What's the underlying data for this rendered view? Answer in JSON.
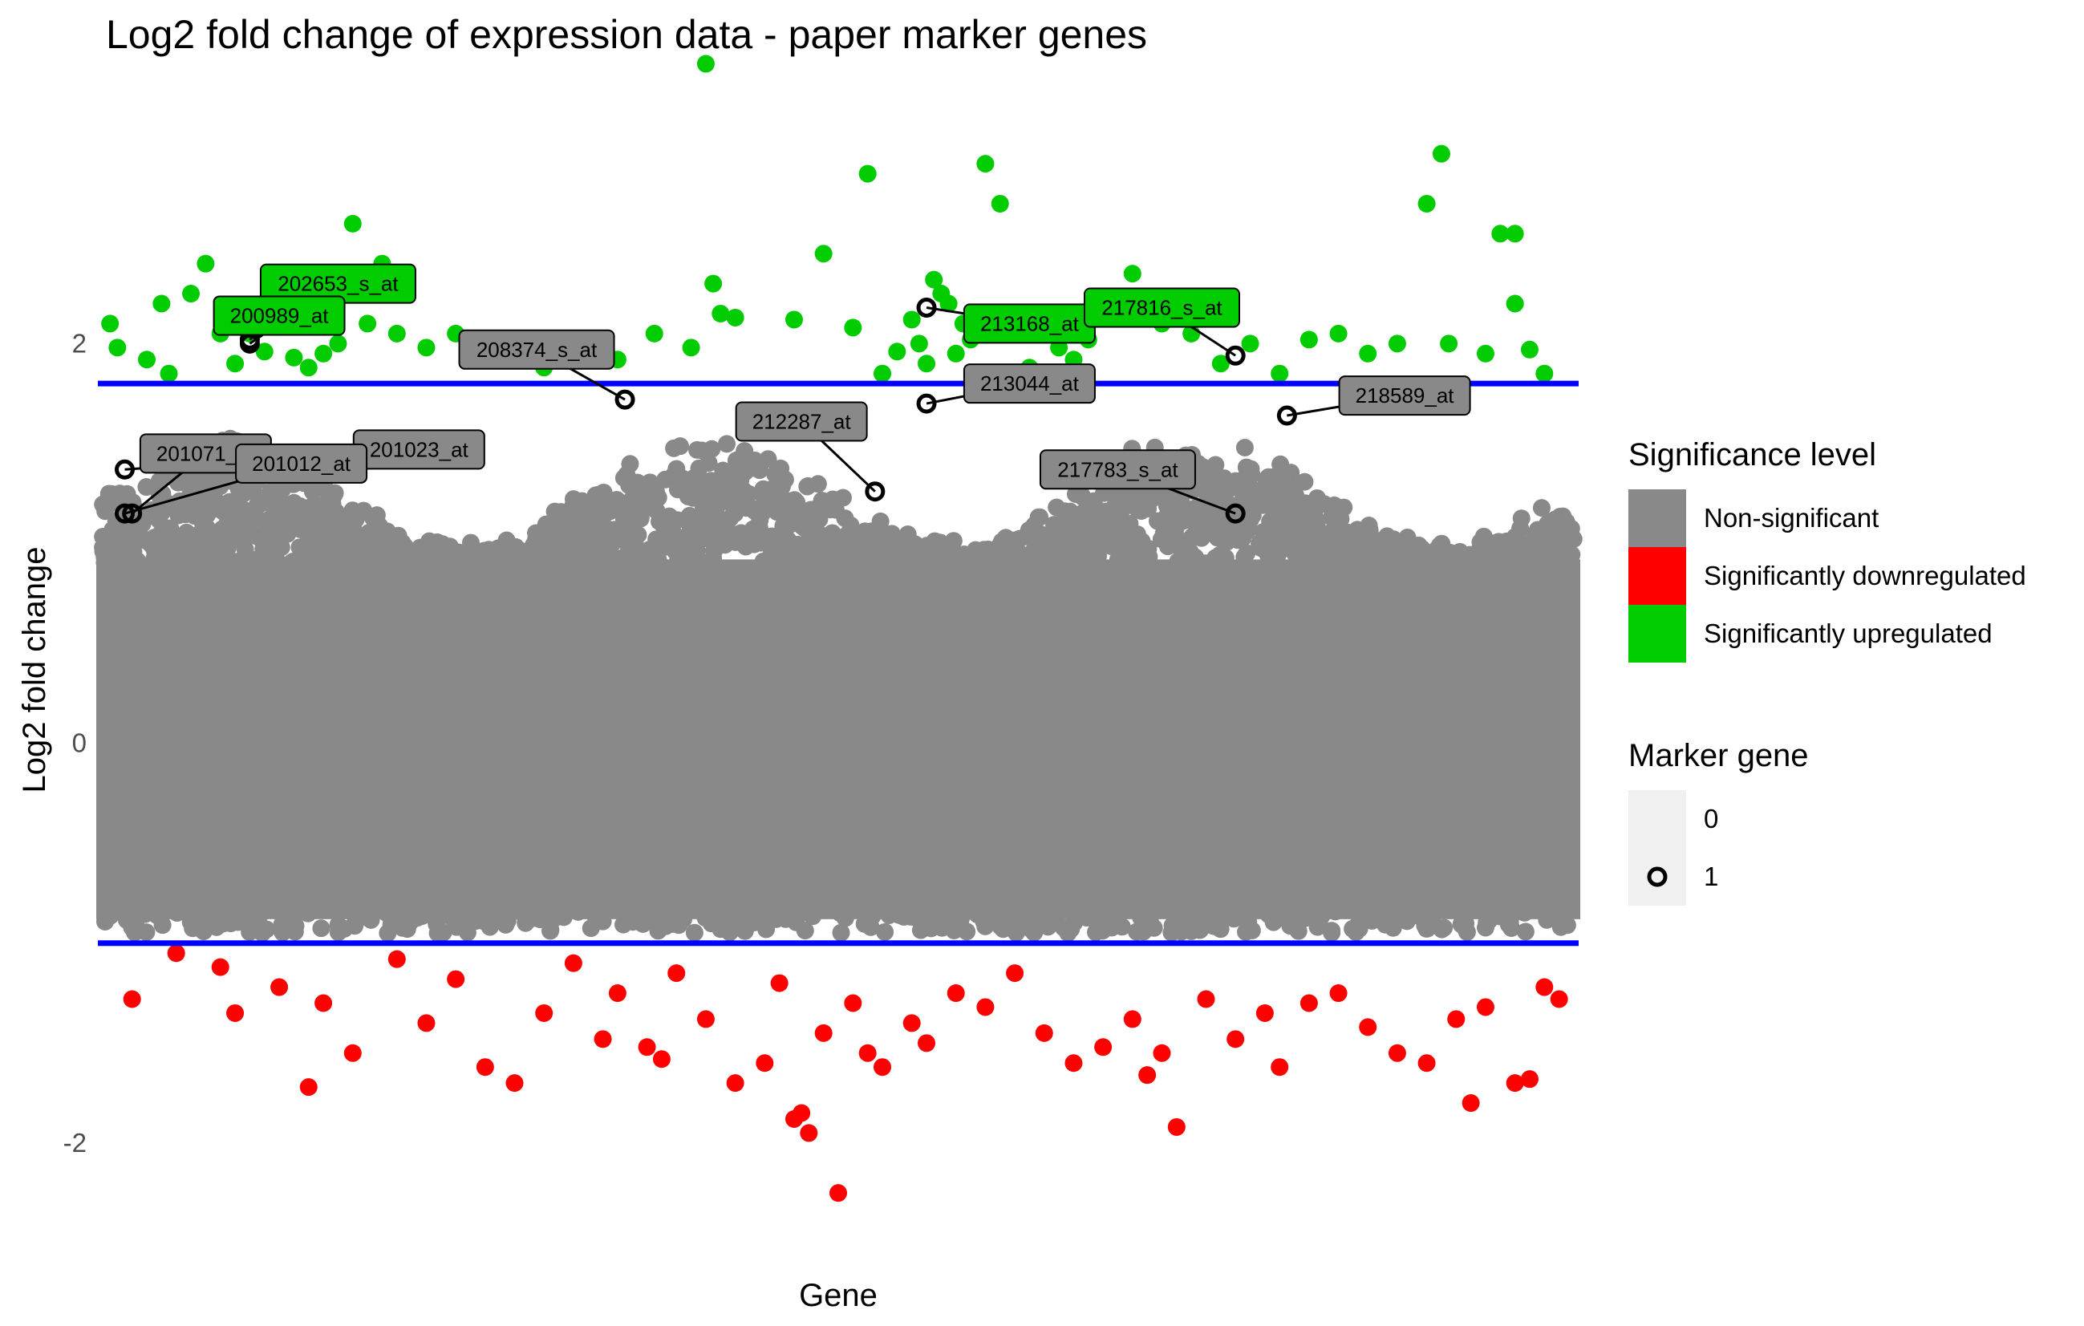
{
  "chart_data": {
    "type": "scatter",
    "title": "Log2 fold change of expression data - paper marker genes",
    "xlabel": "Gene",
    "ylabel": "Log2 fold change",
    "ylim": [
      -2.45,
      3.35
    ],
    "y_ticks": [
      -2,
      0,
      2
    ],
    "y_tick_labels": [
      "-2",
      "0",
      "2"
    ],
    "grid": false,
    "thresholds": {
      "upper": 1.8,
      "lower": -1.0,
      "color": "#0000ff"
    },
    "legend_position": "right",
    "series": [
      {
        "name": "Non-significant",
        "color": "#898989",
        "description_range": [
          -0.95,
          1.79
        ]
      },
      {
        "name": "Significantly downregulated",
        "color": "#ff0000",
        "values": [
          [
            0.02,
            -1.28
          ],
          [
            0.05,
            -1.05
          ],
          [
            0.08,
            -1.12
          ],
          [
            0.09,
            -1.35
          ],
          [
            0.12,
            -1.22
          ],
          [
            0.14,
            -1.72
          ],
          [
            0.15,
            -1.3
          ],
          [
            0.17,
            -1.55
          ],
          [
            0.2,
            -1.08
          ],
          [
            0.22,
            -1.4
          ],
          [
            0.24,
            -1.18
          ],
          [
            0.26,
            -1.62
          ],
          [
            0.28,
            -1.7
          ],
          [
            0.3,
            -1.35
          ],
          [
            0.32,
            -1.1
          ],
          [
            0.34,
            -1.48
          ],
          [
            0.35,
            -1.25
          ],
          [
            0.37,
            -1.52
          ],
          [
            0.38,
            -1.58
          ],
          [
            0.39,
            -1.15
          ],
          [
            0.41,
            -1.38
          ],
          [
            0.43,
            -1.7
          ],
          [
            0.45,
            -1.6
          ],
          [
            0.46,
            -1.2
          ],
          [
            0.47,
            -1.88
          ],
          [
            0.475,
            -1.85
          ],
          [
            0.48,
            -1.95
          ],
          [
            0.49,
            -1.45
          ],
          [
            0.5,
            -2.25
          ],
          [
            0.51,
            -1.3
          ],
          [
            0.52,
            -1.55
          ],
          [
            0.53,
            -1.62
          ],
          [
            0.55,
            -1.4
          ],
          [
            0.56,
            -1.5
          ],
          [
            0.58,
            -1.25
          ],
          [
            0.6,
            -1.32
          ],
          [
            0.62,
            -1.15
          ],
          [
            0.64,
            -1.45
          ],
          [
            0.66,
            -1.6
          ],
          [
            0.68,
            -1.52
          ],
          [
            0.7,
            -1.38
          ],
          [
            0.71,
            -1.66
          ],
          [
            0.72,
            -1.55
          ],
          [
            0.73,
            -1.92
          ],
          [
            0.75,
            -1.28
          ],
          [
            0.77,
            -1.48
          ],
          [
            0.79,
            -1.35
          ],
          [
            0.8,
            -1.62
          ],
          [
            0.82,
            -1.3
          ],
          [
            0.84,
            -1.25
          ],
          [
            0.86,
            -1.42
          ],
          [
            0.88,
            -1.55
          ],
          [
            0.9,
            -1.6
          ],
          [
            0.92,
            -1.38
          ],
          [
            0.93,
            -1.8
          ],
          [
            0.94,
            -1.32
          ],
          [
            0.96,
            -1.7
          ],
          [
            0.97,
            -1.68
          ],
          [
            0.98,
            -1.22
          ],
          [
            0.99,
            -1.28
          ]
        ]
      },
      {
        "name": "Significantly upregulated",
        "color": "#00cc00",
        "values": [
          [
            0.005,
            2.1
          ],
          [
            0.01,
            1.98
          ],
          [
            0.03,
            1.92
          ],
          [
            0.04,
            2.2
          ],
          [
            0.045,
            1.85
          ],
          [
            0.06,
            2.25
          ],
          [
            0.07,
            2.4
          ],
          [
            0.08,
            2.05
          ],
          [
            0.09,
            1.9
          ],
          [
            0.1,
            2.05
          ],
          [
            0.11,
            1.96
          ],
          [
            0.12,
            2.1
          ],
          [
            0.13,
            1.93
          ],
          [
            0.14,
            1.88
          ],
          [
            0.15,
            1.95
          ],
          [
            0.16,
            2.0
          ],
          [
            0.17,
            2.6
          ],
          [
            0.18,
            2.1
          ],
          [
            0.19,
            2.4
          ],
          [
            0.2,
            2.05
          ],
          [
            0.22,
            1.98
          ],
          [
            0.24,
            2.05
          ],
          [
            0.3,
            1.88
          ],
          [
            0.35,
            1.92
          ],
          [
            0.375,
            2.05
          ],
          [
            0.4,
            1.98
          ],
          [
            0.41,
            3.4
          ],
          [
            0.415,
            2.3
          ],
          [
            0.42,
            2.15
          ],
          [
            0.43,
            2.13
          ],
          [
            0.47,
            2.12
          ],
          [
            0.49,
            2.45
          ],
          [
            0.51,
            2.08
          ],
          [
            0.52,
            2.85
          ],
          [
            0.53,
            1.85
          ],
          [
            0.54,
            1.96
          ],
          [
            0.55,
            2.12
          ],
          [
            0.555,
            2.0
          ],
          [
            0.56,
            1.9
          ],
          [
            0.565,
            2.32
          ],
          [
            0.57,
            2.25
          ],
          [
            0.575,
            2.2
          ],
          [
            0.58,
            1.95
          ],
          [
            0.585,
            2.1
          ],
          [
            0.59,
            2.02
          ],
          [
            0.6,
            2.9
          ],
          [
            0.61,
            2.7
          ],
          [
            0.62,
            2.05
          ],
          [
            0.63,
            1.88
          ],
          [
            0.64,
            2.05
          ],
          [
            0.65,
            1.98
          ],
          [
            0.66,
            1.92
          ],
          [
            0.67,
            2.02
          ],
          [
            0.69,
            2.2
          ],
          [
            0.7,
            2.35
          ],
          [
            0.72,
            2.1
          ],
          [
            0.74,
            2.05
          ],
          [
            0.76,
            1.9
          ],
          [
            0.78,
            2.0
          ],
          [
            0.8,
            1.85
          ],
          [
            0.82,
            2.02
          ],
          [
            0.84,
            2.05
          ],
          [
            0.86,
            1.95
          ],
          [
            0.88,
            2.0
          ],
          [
            0.9,
            2.7
          ],
          [
            0.91,
            2.95
          ],
          [
            0.915,
            2.0
          ],
          [
            0.94,
            1.95
          ],
          [
            0.95,
            2.55
          ],
          [
            0.96,
            2.55
          ],
          [
            0.98,
            1.85
          ],
          [
            0.96,
            2.2
          ],
          [
            0.97,
            1.97
          ]
        ]
      }
    ],
    "marker_genes": [
      {
        "label": "202653_s_at",
        "x": 0.1,
        "y": 2.0,
        "category": "Significantly upregulated"
      },
      {
        "label": "200989_at",
        "x": 0.1,
        "y": 2.02,
        "category": "Significantly upregulated"
      },
      {
        "label": "201023_at",
        "x": 0.015,
        "y": 1.37,
        "category": "Non-significant"
      },
      {
        "label": "201071_at",
        "x": 0.02,
        "y": 1.15,
        "category": "Non-significant"
      },
      {
        "label": "201012_at",
        "x": 0.015,
        "y": 1.15,
        "category": "Non-significant"
      },
      {
        "label": "208374_s_at",
        "x": 0.355,
        "y": 1.72,
        "category": "Non-significant"
      },
      {
        "label": "212287_at",
        "x": 0.525,
        "y": 1.26,
        "category": "Non-significant"
      },
      {
        "label": "213168_at",
        "x": 0.56,
        "y": 2.18,
        "category": "Significantly upregulated"
      },
      {
        "label": "213044_at",
        "x": 0.56,
        "y": 1.7,
        "category": "Non-significant"
      },
      {
        "label": "217816_s_at",
        "x": 0.77,
        "y": 1.94,
        "category": "Significantly upregulated"
      },
      {
        "label": "217783_s_at",
        "x": 0.77,
        "y": 1.15,
        "category": "Non-significant"
      },
      {
        "label": "218589_at",
        "x": 0.805,
        "y": 1.64,
        "category": "Non-significant"
      }
    ],
    "legends": [
      {
        "title": "Significance level",
        "entries": [
          "Non-significant",
          "Significantly downregulated",
          "Significantly upregulated"
        ]
      },
      {
        "title": "Marker gene",
        "entries": [
          "0",
          "1"
        ]
      }
    ]
  }
}
